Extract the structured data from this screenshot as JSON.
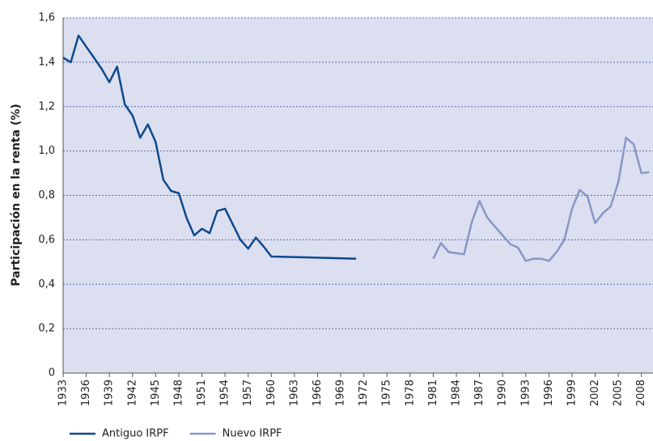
{
  "chart_data": {
    "type": "line",
    "y_label": "Participación en la renta (%)",
    "xlim": [
      1933,
      2009.5
    ],
    "ylim": [
      0,
      1.6
    ],
    "xticks": [
      1933,
      1936,
      1939,
      1942,
      1945,
      1948,
      1951,
      1954,
      1957,
      1960,
      1963,
      1966,
      1969,
      1972,
      1975,
      1978,
      1981,
      1984,
      1987,
      1990,
      1993,
      1996,
      1999,
      2002,
      2005,
      2008
    ],
    "yticks": [
      0,
      {
        "value": 0.2,
        "label": "0,2"
      },
      {
        "value": 0.4,
        "label": "0,4"
      },
      {
        "value": 0.6,
        "label": "0,6"
      },
      {
        "value": 0.8,
        "label": "0,8"
      },
      {
        "value": 1.0,
        "label": "1,0"
      },
      {
        "value": 1.2,
        "label": "1,2"
      },
      {
        "value": 1.4,
        "label": "1,4"
      },
      {
        "value": 1.6,
        "label": "1,6"
      }
    ],
    "grid": true,
    "background": "#dcdff0",
    "series": [
      {
        "name": "Antiguo IRPF",
        "color": "#0d4a8c",
        "x": [
          1933,
          1934,
          1935,
          1936,
          1937,
          1938,
          1939,
          1940,
          1941,
          1942,
          1943,
          1944,
          1945,
          1946,
          1947,
          1948,
          1949,
          1950,
          1951,
          1952,
          1953,
          1954,
          1955,
          1956,
          1957,
          1958,
          1959,
          1960,
          1971
        ],
        "values": [
          1.42,
          1.4,
          1.52,
          1.47,
          1.42,
          1.37,
          1.31,
          1.38,
          1.21,
          1.16,
          1.06,
          1.12,
          1.04,
          0.87,
          0.82,
          0.81,
          0.7,
          0.62,
          0.65,
          0.63,
          0.73,
          0.74,
          0.67,
          0.6,
          0.56,
          0.61,
          0.57,
          0.525,
          0.515
        ]
      },
      {
        "name": "Nuevo IRPF",
        "color": "#8896c8",
        "x": [
          1981,
          1982,
          1983,
          1984,
          1985,
          1986,
          1987,
          1988,
          1989,
          1990,
          1991,
          1992,
          1993,
          1994,
          1995,
          1996,
          1997,
          1998,
          1999,
          2000,
          2001,
          2002,
          2003,
          2004,
          2005,
          2006,
          2007,
          2008,
          2009
        ],
        "values": [
          0.515,
          0.585,
          0.545,
          0.54,
          0.535,
          0.68,
          0.775,
          0.7,
          0.66,
          0.62,
          0.58,
          0.565,
          0.505,
          0.515,
          0.515,
          0.505,
          0.545,
          0.6,
          0.74,
          0.825,
          0.795,
          0.675,
          0.72,
          0.75,
          0.86,
          1.06,
          1.03,
          0.9,
          0.905
        ]
      }
    ]
  }
}
